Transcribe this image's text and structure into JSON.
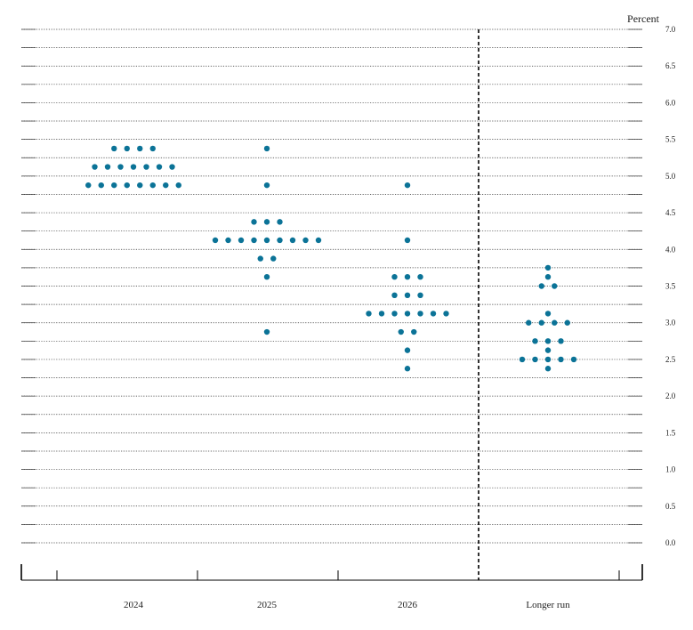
{
  "chart_data": {
    "type": "scatter",
    "subtype": "dot plot",
    "unit_label": "Percent",
    "categories": [
      "2024",
      "2025",
      "2026",
      "Longer run"
    ],
    "ylim": [
      0,
      7
    ],
    "y_ticks": [
      "0.0",
      "0.5",
      "1.0",
      "1.5",
      "2.0",
      "2.5",
      "3.0",
      "3.5",
      "4.0",
      "4.5",
      "5.0",
      "5.5",
      "6.0",
      "6.5",
      "7.0"
    ],
    "gridlines": "dotted, every 0.25",
    "separator_before": "Longer run",
    "dot_color": "#0b7397",
    "groups": [
      {
        "category": "2024",
        "points": [
          {
            "y": 5.375,
            "count": 4
          },
          {
            "y": 5.125,
            "count": 7
          },
          {
            "y": 4.875,
            "count": 8
          }
        ]
      },
      {
        "category": "2025",
        "points": [
          {
            "y": 5.375,
            "count": 1
          },
          {
            "y": 4.875,
            "count": 1
          },
          {
            "y": 4.375,
            "count": 3
          },
          {
            "y": 4.125,
            "count": 9
          },
          {
            "y": 3.875,
            "count": 2
          },
          {
            "y": 3.625,
            "count": 1
          },
          {
            "y": 2.875,
            "count": 1
          }
        ]
      },
      {
        "category": "2026",
        "points": [
          {
            "y": 4.875,
            "count": 1
          },
          {
            "y": 4.125,
            "count": 1
          },
          {
            "y": 3.625,
            "count": 3
          },
          {
            "y": 3.375,
            "count": 3
          },
          {
            "y": 3.125,
            "count": 7
          },
          {
            "y": 2.875,
            "count": 2
          },
          {
            "y": 2.625,
            "count": 1
          },
          {
            "y": 2.375,
            "count": 1
          }
        ]
      },
      {
        "category": "Longer run",
        "points": [
          {
            "y": 3.75,
            "count": 1
          },
          {
            "y": 3.625,
            "count": 1
          },
          {
            "y": 3.5,
            "count": 2
          },
          {
            "y": 3.125,
            "count": 1
          },
          {
            "y": 3.0,
            "count": 4
          },
          {
            "y": 2.75,
            "count": 3
          },
          {
            "y": 2.625,
            "count": 1
          },
          {
            "y": 2.5,
            "count": 5
          },
          {
            "y": 2.375,
            "count": 1
          }
        ]
      }
    ]
  }
}
